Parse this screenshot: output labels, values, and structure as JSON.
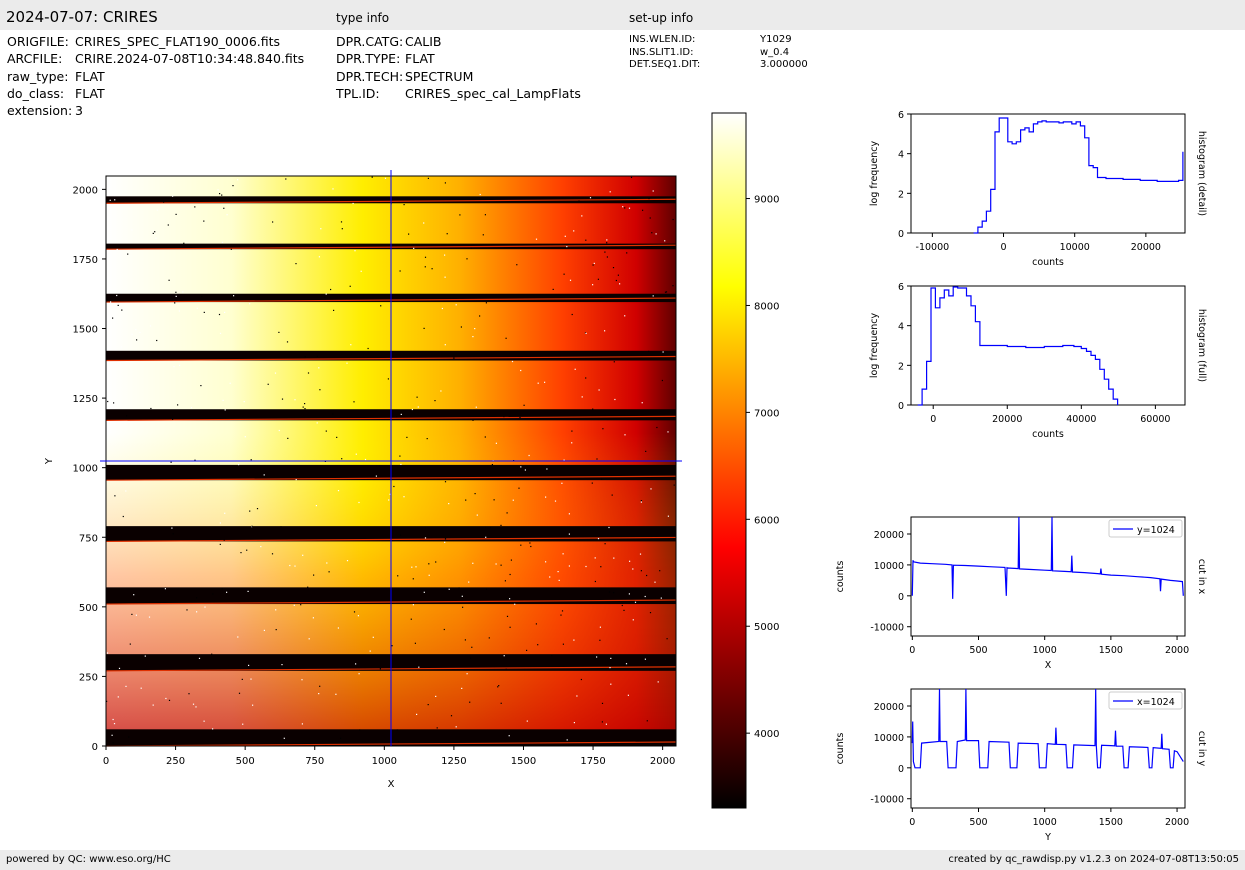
{
  "header": {
    "title": "2024-07-07: CRIRES",
    "type_info": "type info",
    "setup_info": "set-up info"
  },
  "file_info": [
    {
      "key": "ORIGFILE:",
      "value": "CRIRES_SPEC_FLAT190_0006.fits"
    },
    {
      "key": "ARCFILE:",
      "value": "CRIRE.2024-07-08T10:34:48.840.fits"
    },
    {
      "key": "raw_type:",
      "value": "FLAT"
    },
    {
      "key": "do_class:",
      "value": "FLAT"
    },
    {
      "key": "extension:",
      "value": "3"
    }
  ],
  "type_info": [
    {
      "key": "DPR.CATG:",
      "value": "CALIB"
    },
    {
      "key": "DPR.TYPE:",
      "value": "FLAT"
    },
    {
      "key": "DPR.TECH:",
      "value": "SPECTRUM"
    },
    {
      "key": "TPL.ID:",
      "value": "CRIRES_spec_cal_LampFlats"
    }
  ],
  "setup_info": [
    {
      "key": "INS.WLEN.ID:",
      "value": "Y1029"
    },
    {
      "key": "INS.SLIT1.ID:",
      "value": "w_0.4"
    },
    {
      "key": "DET.SEQ1.DIT:",
      "value": "3.000000"
    }
  ],
  "footer": {
    "left": "powered by QC: www.eso.org/HC",
    "right": "created by qc_rawdisp.py v1.2.3 on 2024-07-08T13:50:05"
  },
  "colors": {
    "line": "#0000ff",
    "bar": "#ebebeb"
  },
  "chart_data": [
    {
      "type": "heatmap",
      "name": "image",
      "xlabel": "X",
      "ylabel": "Y",
      "xlim": [
        0,
        2048
      ],
      "ylim": [
        0,
        2048
      ],
      "xticks": [
        0,
        250,
        500,
        750,
        1000,
        1250,
        1500,
        1750,
        2000
      ],
      "yticks": [
        0,
        250,
        500,
        750,
        1000,
        1250,
        1500,
        1750,
        2000
      ],
      "colormap": "hot",
      "crosshair": {
        "x": 1024,
        "y": 1024
      },
      "colorbar": {
        "ticks": [
          4000,
          5000,
          6000,
          7000,
          8000,
          9000
        ],
        "range": [
          3300,
          9800
        ]
      },
      "gaps": [
        [
          0,
          60
        ],
        [
          270,
          330
        ],
        [
          510,
          570
        ],
        [
          735,
          790
        ],
        [
          955,
          1010
        ],
        [
          1170,
          1210
        ],
        [
          1385,
          1420
        ],
        [
          1595,
          1625
        ],
        [
          1785,
          1805
        ],
        [
          1950,
          1975
        ]
      ]
    },
    {
      "type": "line",
      "name": "histogram-detail",
      "xlabel": "counts",
      "ylabel": "log frequency",
      "right_label": "histogram (detail)",
      "xlim": [
        -13000,
        25500
      ],
      "ylim": [
        0,
        6
      ],
      "xticks": [
        -10000,
        0,
        10000,
        20000
      ],
      "xticklabels": [
        "-10000",
        "0",
        "10000",
        "20000"
      ],
      "yticks": [
        0,
        2,
        4,
        6
      ],
      "x": [
        -4200,
        -3600,
        -3000,
        -2400,
        -1800,
        -1200,
        -600,
        0,
        600,
        1200,
        1800,
        2400,
        3000,
        3600,
        4200,
        4800,
        5400,
        6000,
        6600,
        7200,
        7800,
        8400,
        9000,
        9600,
        10200,
        10800,
        11400,
        12000,
        12600,
        13200,
        14400,
        16800,
        19200,
        21600,
        24000,
        24600,
        25200
      ],
      "y": [
        0.0,
        0.3,
        0.6,
        1.1,
        2.2,
        5.1,
        5.8,
        5.8,
        4.6,
        4.5,
        4.6,
        5.2,
        5.3,
        5.1,
        5.5,
        5.6,
        5.65,
        5.6,
        5.6,
        5.6,
        5.55,
        5.6,
        5.6,
        5.5,
        5.6,
        5.4,
        4.8,
        3.4,
        3.3,
        2.8,
        2.75,
        2.7,
        2.65,
        2.6,
        2.6,
        2.65,
        4.1
      ]
    },
    {
      "type": "line",
      "name": "histogram-full",
      "xlabel": "counts",
      "ylabel": "log frequency",
      "right_label": "histogram (full)",
      "xlim": [
        -6000,
        68000
      ],
      "ylim": [
        0,
        6
      ],
      "xticks": [
        0,
        20000,
        40000,
        60000
      ],
      "xticklabels": [
        "0",
        "20000",
        "40000",
        "60000"
      ],
      "yticks": [
        0,
        2,
        4,
        6
      ],
      "x": [
        -4200,
        -3000,
        -1800,
        -600,
        600,
        1800,
        3000,
        4200,
        5400,
        6600,
        7800,
        9000,
        10200,
        11400,
        12600,
        20000,
        25000,
        30000,
        35000,
        38000,
        40000,
        41400,
        42600,
        43800,
        45000,
        46200,
        47400,
        48600,
        49800
      ],
      "y": [
        0.0,
        0.8,
        2.2,
        5.9,
        4.9,
        5.4,
        5.8,
        5.5,
        5.95,
        5.9,
        5.9,
        5.5,
        5.0,
        4.2,
        3.0,
        2.95,
        2.9,
        2.95,
        3.0,
        2.95,
        2.85,
        2.7,
        2.5,
        2.3,
        1.8,
        1.3,
        0.8,
        0.3,
        0.0
      ]
    },
    {
      "type": "line",
      "name": "cut-in-x",
      "xlabel": "X",
      "ylabel": "counts",
      "right_label": "cut in x",
      "legend": "y=1024",
      "xlim": [
        -10,
        2060
      ],
      "ylim": [
        -13000,
        25500
      ],
      "xticks": [
        0,
        500,
        1000,
        1500,
        2000
      ],
      "yticks": [
        -10000,
        0,
        10000,
        20000
      ],
      "yticklabels": [
        "-10000",
        "0",
        "10000",
        "20000"
      ],
      "x": [
        0,
        5,
        10,
        60,
        150,
        250,
        300,
        305,
        310,
        400,
        500,
        600,
        700,
        710,
        715,
        720,
        800,
        805,
        810,
        900,
        1000,
        1050,
        1055,
        1060,
        1150,
        1200,
        1205,
        1210,
        1300,
        1400,
        1420,
        1425,
        1430,
        1500,
        1600,
        1700,
        1800,
        1870,
        1875,
        1880,
        1950,
        2000,
        2040,
        2047
      ],
      "y": [
        0,
        11500,
        11000,
        10600,
        10400,
        10200,
        10000,
        -1000,
        9900,
        9800,
        9600,
        9400,
        9200,
        0,
        9100,
        9000,
        8800,
        25500,
        8700,
        8500,
        8300,
        8200,
        25500,
        8100,
        7900,
        7800,
        13000,
        7700,
        7500,
        7200,
        7100,
        8800,
        7000,
        6700,
        6500,
        6200,
        5900,
        5500,
        1500,
        5400,
        5000,
        4800,
        4600,
        0
      ]
    },
    {
      "type": "line",
      "name": "cut-in-y",
      "xlabel": "Y",
      "ylabel": "counts",
      "right_label": "cut in y",
      "legend": "x=1024",
      "xlim": [
        -10,
        2060
      ],
      "ylim": [
        -13000,
        25500
      ],
      "xticks": [
        0,
        500,
        1000,
        1500,
        2000
      ],
      "yticks": [
        -10000,
        0,
        10000,
        20000
      ],
      "yticklabels": [
        "-10000",
        "0",
        "10000",
        "20000"
      ],
      "x": [
        0,
        3,
        8,
        20,
        60,
        70,
        200,
        205,
        210,
        260,
        270,
        330,
        340,
        400,
        405,
        410,
        500,
        510,
        570,
        580,
        730,
        740,
        790,
        800,
        950,
        960,
        1010,
        1020,
        1080,
        1085,
        1090,
        1160,
        1170,
        1210,
        1220,
        1380,
        1385,
        1390,
        1400,
        1420,
        1430,
        1500,
        1530,
        1535,
        1540,
        1590,
        1600,
        1630,
        1640,
        1780,
        1790,
        1810,
        1820,
        1880,
        1885,
        1890,
        1940,
        1950,
        1970,
        1980,
        2000,
        2047
      ],
      "y": [
        8000,
        15000,
        2000,
        0,
        0,
        8000,
        8500,
        25500,
        8500,
        8500,
        0,
        0,
        8500,
        9000,
        25500,
        8800,
        8800,
        0,
        0,
        8500,
        8300,
        0,
        0,
        8000,
        7800,
        0,
        0,
        7800,
        7600,
        13000,
        7600,
        7500,
        0,
        0,
        7400,
        7200,
        25500,
        7200,
        0,
        0,
        7300,
        7200,
        7100,
        12000,
        7000,
        7000,
        0,
        0,
        6800,
        6600,
        0,
        0,
        6500,
        6300,
        11000,
        6200,
        6000,
        0,
        0,
        5500,
        5200,
        2000
      ]
    }
  ]
}
